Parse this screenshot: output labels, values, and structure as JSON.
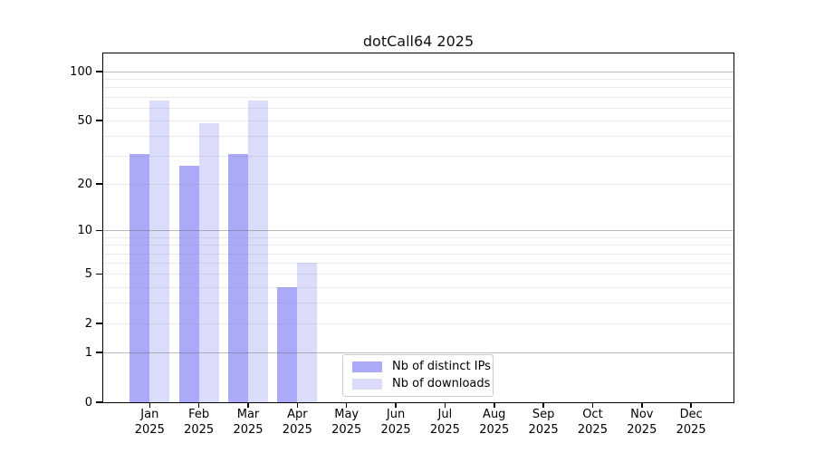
{
  "title": "dotCall64 2025",
  "chart_data": {
    "type": "bar",
    "title": "dotCall64 2025",
    "scale": "log1p",
    "grid": "on",
    "legend_position": "bottom-center-inside",
    "categories": [
      "Jan",
      "Feb",
      "Mar",
      "Apr",
      "May",
      "Jun",
      "Jul",
      "Aug",
      "Sep",
      "Oct",
      "Nov",
      "Dec"
    ],
    "x_year_label": "2025",
    "series": [
      {
        "name": "Nb of distinct IPs",
        "color": "#aaaaf8",
        "values": [
          31,
          26,
          31,
          4,
          0,
          0,
          0,
          0,
          0,
          0,
          0,
          0
        ]
      },
      {
        "name": "Nb of downloads",
        "color": "#dbdbfa",
        "values": [
          66,
          48,
          66,
          6,
          0,
          0,
          0,
          0,
          0,
          0,
          0,
          0
        ]
      }
    ],
    "y_ticks": [
      0,
      1,
      2,
      5,
      10,
      20,
      50,
      100
    ],
    "major_gridlines": [
      1,
      10,
      100
    ],
    "minor_gridlines": [
      2,
      3,
      4,
      5,
      6,
      7,
      8,
      9,
      20,
      30,
      40,
      50,
      60,
      70,
      80,
      90
    ],
    "ylim": [
      0,
      130
    ]
  }
}
